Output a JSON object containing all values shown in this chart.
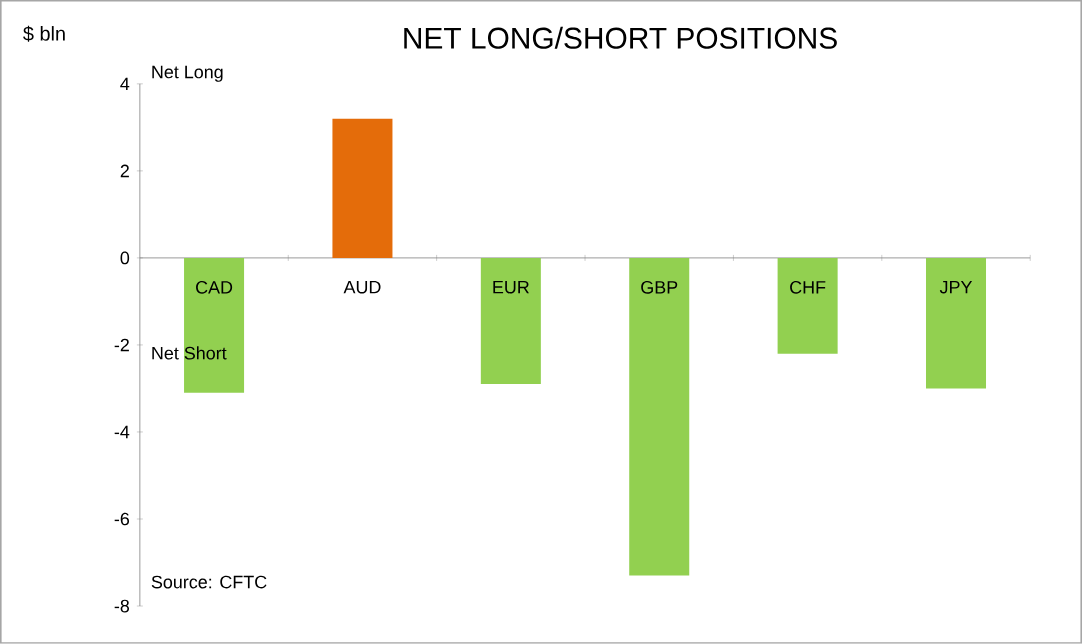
{
  "chart_data": {
    "type": "bar",
    "title": "NET LONG/SHORT POSITIONS",
    "ylabel": "$ bln",
    "categories": [
      "CAD",
      "AUD",
      "EUR",
      "GBP",
      "CHF",
      "JPY"
    ],
    "values": [
      -3.1,
      3.2,
      -2.9,
      -7.3,
      -2.2,
      -3.0
    ],
    "colors": [
      "#92d050",
      "#e46c0a",
      "#92d050",
      "#92d050",
      "#92d050",
      "#92d050"
    ],
    "ylim": [
      -8,
      4
    ],
    "yticks": [
      -8,
      -6,
      -4,
      -2,
      0,
      2,
      4
    ],
    "annotations": [
      "Net Long",
      "Net Short",
      "Source: CFTC"
    ]
  }
}
